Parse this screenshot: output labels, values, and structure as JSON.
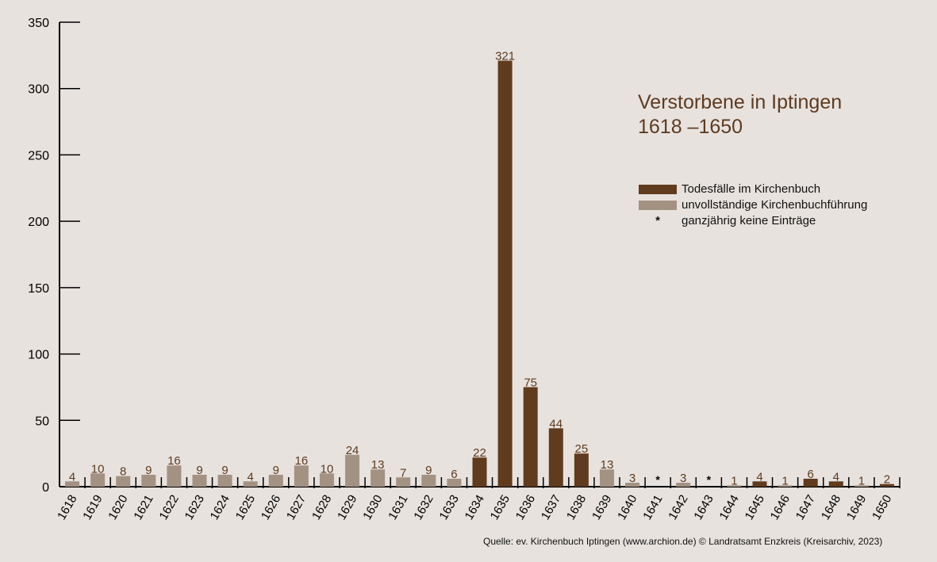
{
  "title": {
    "line1": "Verstorbene in Iptingen",
    "line2": "1618 –1650"
  },
  "legend": [
    {
      "label": "Todesfälle im Kirchenbuch",
      "color": "#603b1e",
      "marker": "swatch"
    },
    {
      "label": "unvollständige Kirchenbuchführung",
      "color": "#a39282",
      "marker": "swatch"
    },
    {
      "label": "ganzjährig keine Einträge",
      "symbol": "*",
      "marker": "symbol"
    }
  ],
  "source": "Quelle: ev. Kirchenbuch Iptingen (www.archion.de)  © Landratsamt Enzkreis (Kreisarchiv, 2023)",
  "colors": {
    "complete": "#603b1e",
    "incomplete": "#a39282",
    "label": "#5e3b1f",
    "axis": "#000000",
    "background": "#e7e2de"
  },
  "chart_data": {
    "type": "bar",
    "ylim": [
      0,
      350
    ],
    "yticks": [
      0,
      50,
      100,
      150,
      200,
      250,
      300,
      350
    ],
    "grid": false,
    "legend_position": "right",
    "categories": [
      "1618",
      "1619",
      "1620",
      "1621",
      "1622",
      "1623",
      "1624",
      "1625",
      "1626",
      "1627",
      "1628",
      "1629",
      "1630",
      "1631",
      "1632",
      "1633",
      "1634",
      "1635",
      "1636",
      "1637",
      "1638",
      "1639",
      "1640",
      "1641",
      "1642",
      "1643",
      "1644",
      "1645",
      "1646",
      "1647",
      "1648",
      "1649",
      "1650"
    ],
    "values": [
      4,
      10,
      8,
      9,
      16,
      9,
      9,
      4,
      9,
      16,
      10,
      24,
      13,
      7,
      9,
      6,
      22,
      321,
      75,
      44,
      25,
      13,
      3,
      null,
      3,
      null,
      1,
      4,
      1,
      6,
      4,
      1,
      2
    ],
    "value_labels": [
      "4",
      "10",
      "8",
      "9",
      "16",
      "9",
      "9",
      "4",
      "9",
      "16",
      "10",
      "24",
      "13",
      "7",
      "9",
      "6",
      "22",
      "321",
      "75",
      "44",
      "25",
      "13",
      "3",
      "*",
      "3",
      "*",
      "1",
      "4",
      "1",
      "6",
      "4",
      "1",
      "2"
    ],
    "series_type": [
      "incomplete",
      "incomplete",
      "incomplete",
      "incomplete",
      "incomplete",
      "incomplete",
      "incomplete",
      "incomplete",
      "incomplete",
      "incomplete",
      "incomplete",
      "incomplete",
      "incomplete",
      "incomplete",
      "incomplete",
      "incomplete",
      "complete",
      "complete",
      "complete",
      "complete",
      "complete",
      "incomplete",
      "incomplete",
      "none",
      "incomplete",
      "none",
      "incomplete",
      "complete",
      "incomplete",
      "complete",
      "complete",
      "incomplete",
      "complete"
    ]
  }
}
